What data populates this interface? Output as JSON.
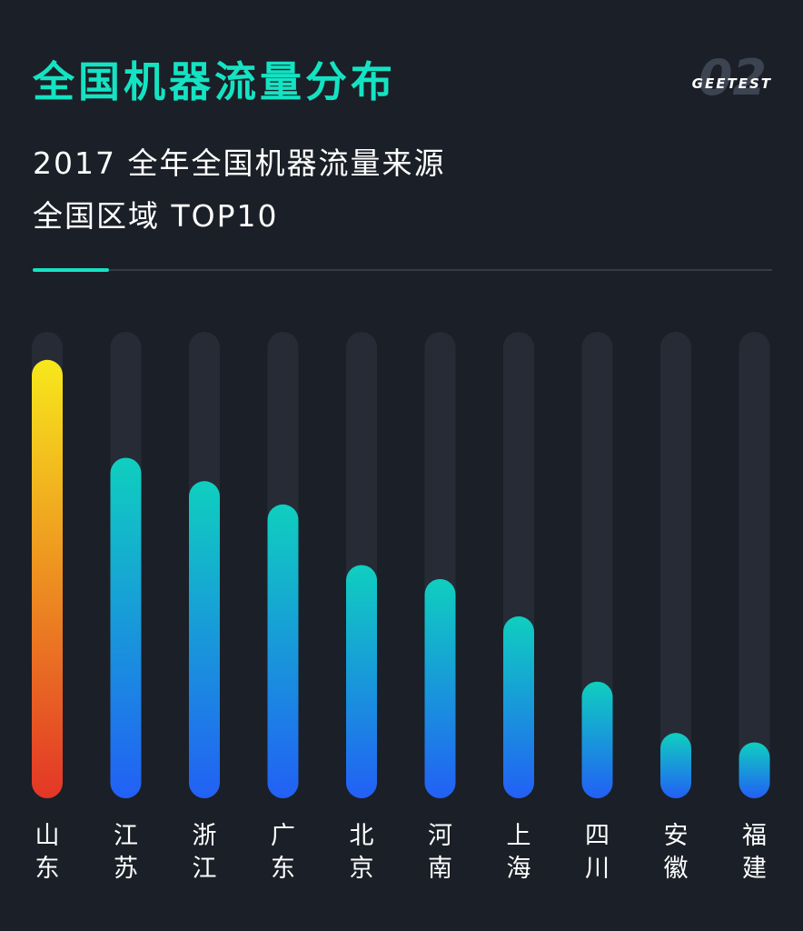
{
  "header": {
    "title": "全国机器流量分布",
    "brand_number": "02",
    "brand_name": "GEETEST",
    "subtitle_line1": "2017 全年全国机器流量来源",
    "subtitle_line2": "全国区域 TOP10"
  },
  "colors": {
    "background": "#1b1f27",
    "accent": "#14e3c3",
    "track": "#262b36",
    "top_bar_gradient": [
      "#f7e81c",
      "#e33626"
    ],
    "bar_gradient": [
      "#0fcfbf",
      "#2260f5"
    ]
  },
  "chart_data": {
    "type": "bar",
    "orientation": "vertical",
    "categories": [
      "山东",
      "江苏",
      "浙江",
      "广东",
      "北京",
      "河南",
      "上海",
      "四川",
      "安徽",
      "福建"
    ],
    "values": [
      94,
      73,
      68,
      63,
      50,
      47,
      39,
      25,
      14,
      12
    ],
    "ylim": [
      0,
      100
    ],
    "grid": false,
    "legend": "none",
    "title": "",
    "xlabel": "",
    "ylabel": ""
  }
}
